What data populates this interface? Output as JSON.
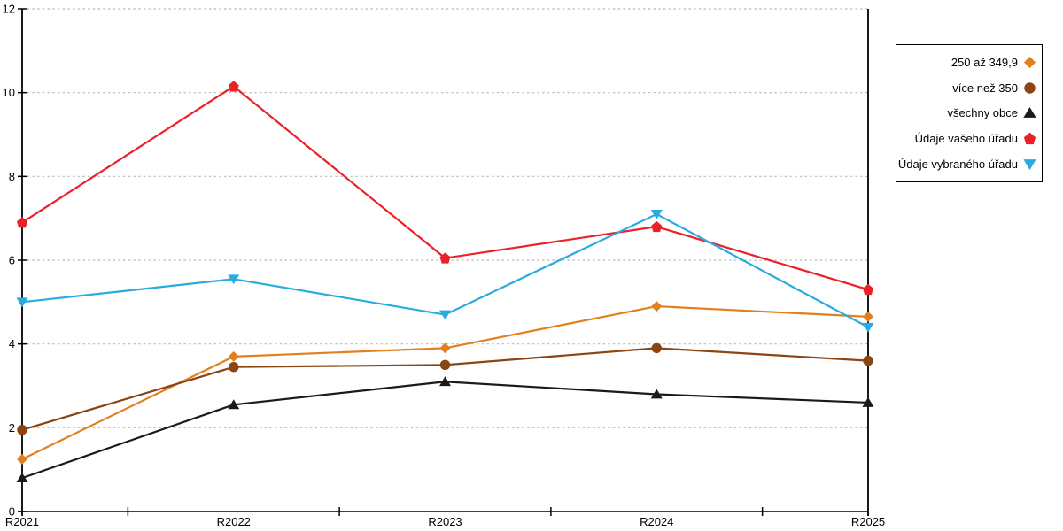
{
  "chart_data": {
    "type": "line",
    "title": "",
    "xlabel": "",
    "ylabel": "",
    "categories": [
      "R2021",
      "R2022",
      "R2023",
      "R2024",
      "R2025"
    ],
    "y_ticks": [
      0,
      2,
      4,
      6,
      8,
      10,
      12
    ],
    "ylim": [
      0,
      12
    ],
    "grid": "horizontal-dotted",
    "legend_position": "right",
    "axis_color": "#000000",
    "gridline_color": "#b9b9b9",
    "series": [
      {
        "name": "250 až 349,9",
        "marker": "diamond",
        "color": "#e2801f",
        "values": [
          1.25,
          3.7,
          3.9,
          4.9,
          4.65
        ]
      },
      {
        "name": "více než 350",
        "marker": "circle",
        "color": "#8b4513",
        "values": [
          1.95,
          3.45,
          3.5,
          3.9,
          3.6
        ]
      },
      {
        "name": "všechny obce",
        "marker": "triangle-up",
        "color": "#1a1a1a",
        "values": [
          0.8,
          2.55,
          3.1,
          2.8,
          2.6
        ]
      },
      {
        "name": "Údaje vašeho úřadu",
        "marker": "pentagon",
        "color": "#ec2127",
        "values": [
          6.9,
          10.15,
          6.05,
          6.8,
          5.3
        ]
      },
      {
        "name": "Údaje vybraného úřadu",
        "marker": "triangle-down",
        "color": "#29abe2",
        "values": [
          5.0,
          5.55,
          4.7,
          7.1,
          4.4
        ]
      }
    ]
  }
}
